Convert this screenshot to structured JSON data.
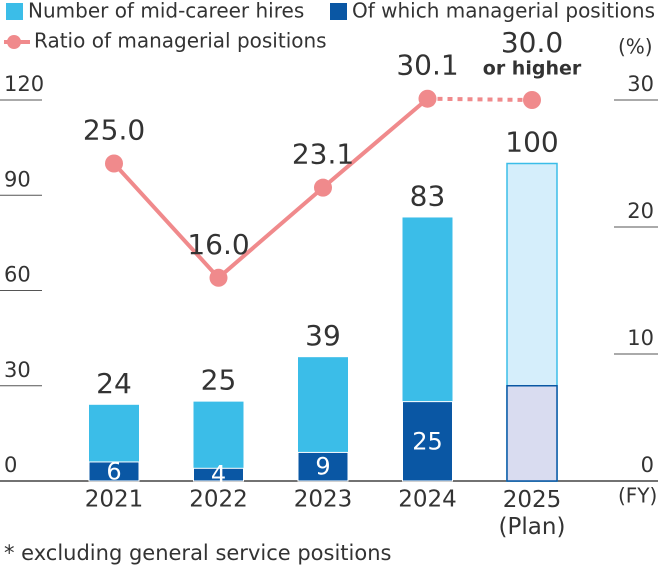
{
  "chart_data": {
    "type": "bar-line",
    "categories": [
      "2021",
      "2022",
      "2023",
      "2024",
      "2025 (Plan)"
    ],
    "series": [
      {
        "name": "Number of mid-career hires",
        "color": "#3bbde8",
        "plan_color": "#d5eefb",
        "values": [
          24,
          25,
          39,
          83,
          100
        ]
      },
      {
        "name": "Of which managerial positions",
        "color": "#0a57a4",
        "plan_color": "#d9dcf0",
        "values": [
          6,
          4,
          9,
          25,
          30
        ],
        "value_labels": [
          "6",
          "4",
          "9",
          "25",
          null
        ]
      },
      {
        "name": "Ratio of managerial positions",
        "color": "#f08a8c",
        "axis": "y2",
        "values": [
          25.0,
          16.0,
          23.1,
          30.1,
          30.0
        ],
        "value_labels": [
          "25.0",
          "16.0",
          "23.1",
          "30.1",
          "30.0"
        ]
      }
    ],
    "ylim": [
      0,
      120
    ],
    "yticks": [
      0,
      30,
      60,
      90,
      120
    ],
    "y2lim": [
      0,
      30
    ],
    "y2ticks": [
      0,
      10,
      20,
      30
    ],
    "y2_label": "(%)",
    "x_label": "(FY)",
    "annotation": "or higher",
    "footnote": "* excluding general service positions"
  }
}
